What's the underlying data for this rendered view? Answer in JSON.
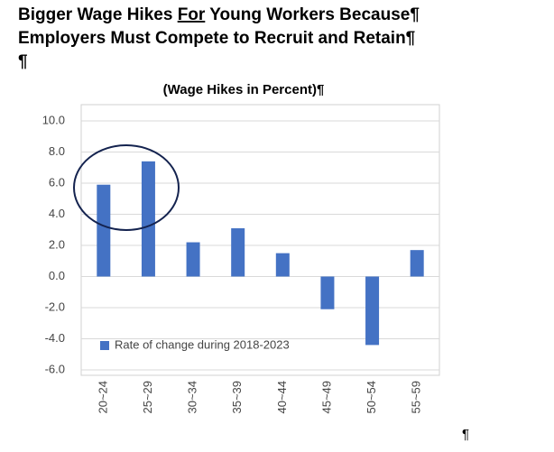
{
  "chart_data": {
    "type": "bar",
    "title_lines": [
      [
        {
          "text": "Bigger Wage Hikes "
        },
        {
          "text": "For",
          "underline": true
        },
        {
          "text": " Young Workers Because¶"
        }
      ],
      [
        {
          "text": "Employers Must Compete to Recruit and Retain¶"
        }
      ],
      [
        {
          "text": "¶"
        }
      ]
    ],
    "subtitle": "(Wage Hikes in Percent)¶",
    "categories": [
      "20~24",
      "25~29",
      "30~34",
      "35~39",
      "40~44",
      "45~49",
      "50~54",
      "55~59"
    ],
    "series": [
      {
        "name": "Rate of change during 2018-2023",
        "color": "#4472c4",
        "values": [
          5.9,
          7.4,
          2.2,
          3.1,
          1.5,
          -2.1,
          -4.4,
          1.7
        ]
      }
    ],
    "ylim": [
      -6,
      10
    ],
    "yticks": [
      {
        "value": -6,
        "label": "-6.0"
      },
      {
        "value": -4,
        "label": "-4.0"
      },
      {
        "value": -2,
        "label": "-2.0"
      },
      {
        "value": 0,
        "label": "0.0"
      },
      {
        "value": 2,
        "label": "2.0"
      },
      {
        "value": 4,
        "label": "4.0"
      },
      {
        "value": 6,
        "label": "6.0"
      },
      {
        "value": 8,
        "label": "8.0"
      },
      {
        "value": 10,
        "label": "10.0"
      }
    ],
    "grid": true,
    "legend": "lower-left",
    "trailing_mark": "¶"
  }
}
